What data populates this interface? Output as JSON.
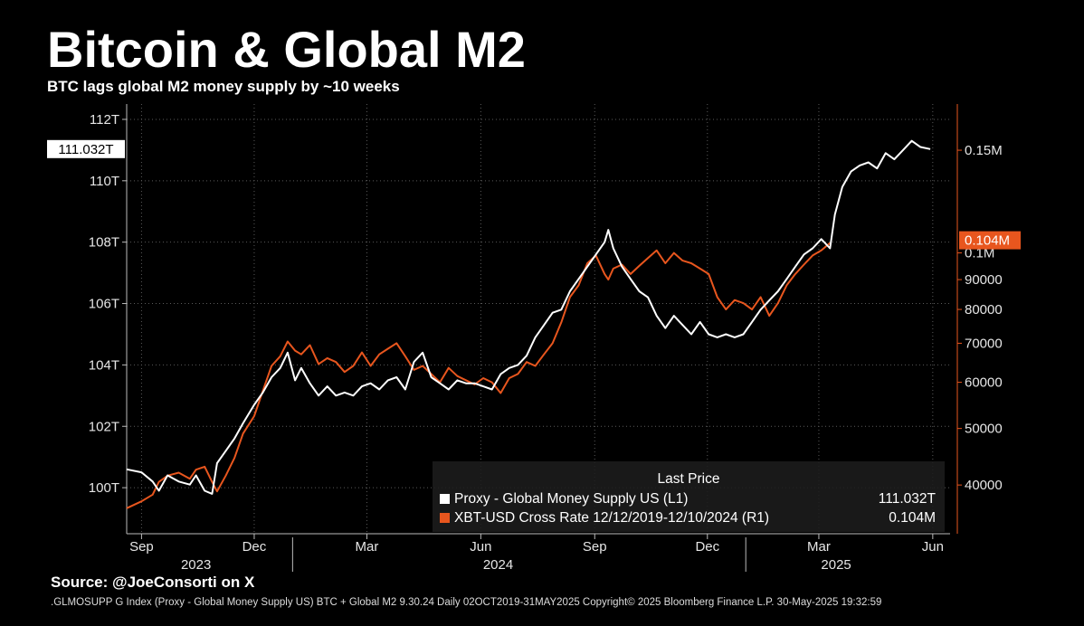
{
  "title": "Bitcoin & Global M2",
  "subtitle": "BTC lags global M2 money supply by ~10 weeks",
  "source": "Source: @JoeConsorti on X",
  "footer": ".GLMOSUPP G Index (Proxy - Global Money Supply US) BTC + Global M2 9.30.24  Daily 02OCT2019-31MAY2025 Copyright© 2025 Bloomberg Finance L.P. 30-May-2025 19:32:59",
  "colors": {
    "m2": "#ffffff",
    "btc": "#e8561e",
    "background": "#000000"
  },
  "chart_data": {
    "type": "line",
    "title": "Bitcoin & Global M2",
    "subtitle": "BTC lags global M2 money supply by ~10 weeks",
    "x_range": [
      "2023-08-20",
      "2025-06-15"
    ],
    "x_ticks": [
      {
        "date": "2023-09-01",
        "label": "Sep"
      },
      {
        "date": "2023-12-01",
        "label": "Dec"
      },
      {
        "date": "2024-03-01",
        "label": "Mar"
      },
      {
        "date": "2024-06-01",
        "label": "Jun"
      },
      {
        "date": "2024-09-01",
        "label": "Sep"
      },
      {
        "date": "2024-12-01",
        "label": "Dec"
      },
      {
        "date": "2025-03-01",
        "label": "Mar"
      },
      {
        "date": "2025-06-01",
        "label": "Jun"
      }
    ],
    "year_labels": [
      {
        "date": "2023-10-15",
        "label": "2023"
      },
      {
        "date": "2024-06-15",
        "label": "2024"
      },
      {
        "date": "2025-03-15",
        "label": "2025"
      }
    ],
    "year_dividers": [
      "2024-01-01",
      "2025-01-01"
    ],
    "left_axis": {
      "ylim": [
        98.5,
        112.5
      ],
      "ticks": [
        {
          "value": 112,
          "label": "112T"
        },
        {
          "value": 110,
          "label": "110T"
        },
        {
          "value": 108,
          "label": "108T"
        },
        {
          "value": 106,
          "label": "106T"
        },
        {
          "value": 104,
          "label": "104T"
        },
        {
          "value": 102,
          "label": "102T"
        },
        {
          "value": 100,
          "label": "100T"
        }
      ]
    },
    "right_axis": {
      "scale": "log",
      "ylim": [
        33000,
        180000
      ],
      "ticks": [
        {
          "value": 150000,
          "label": "0.15M"
        },
        {
          "value": 100000,
          "label": "0.1M"
        },
        {
          "value": 90000,
          "label": "90000"
        },
        {
          "value": 80000,
          "label": "80000"
        },
        {
          "value": 70000,
          "label": "70000"
        },
        {
          "value": 60000,
          "label": "60000"
        },
        {
          "value": 50000,
          "label": "50000"
        },
        {
          "value": 40000,
          "label": "40000"
        }
      ]
    },
    "last_value_tags": {
      "left": "111.032T",
      "right": "0.104M"
    },
    "legend": {
      "title": "Last Price",
      "placement": "bottom-right",
      "entries": [
        {
          "label": "Proxy - Global Money Supply US  (L1)",
          "value": "111.032T",
          "color": "#ffffff"
        },
        {
          "label": "XBT-USD Cross Rate 12/12/2019-12/10/2024  (R1)",
          "value": "0.104M",
          "color": "#e8561e"
        }
      ]
    },
    "series": [
      {
        "name": "Proxy - Global Money Supply US",
        "axis": "left",
        "unit": "T",
        "points": [
          [
            "2023-08-20",
            100.6
          ],
          [
            "2023-09-01",
            100.5
          ],
          [
            "2023-09-10",
            100.2
          ],
          [
            "2023-09-15",
            99.9
          ],
          [
            "2023-09-22",
            100.4
          ],
          [
            "2023-10-01",
            100.2
          ],
          [
            "2023-10-10",
            100.1
          ],
          [
            "2023-10-15",
            100.4
          ],
          [
            "2023-10-22",
            99.9
          ],
          [
            "2023-10-28",
            99.8
          ],
          [
            "2023-11-01",
            100.8
          ],
          [
            "2023-11-08",
            101.2
          ],
          [
            "2023-11-15",
            101.6
          ],
          [
            "2023-11-22",
            102.1
          ],
          [
            "2023-12-01",
            102.7
          ],
          [
            "2023-12-08",
            103.1
          ],
          [
            "2023-12-15",
            103.6
          ],
          [
            "2023-12-22",
            103.9
          ],
          [
            "2023-12-28",
            104.4
          ],
          [
            "2024-01-03",
            103.5
          ],
          [
            "2024-01-08",
            103.9
          ],
          [
            "2024-01-15",
            103.4
          ],
          [
            "2024-01-22",
            103.0
          ],
          [
            "2024-01-29",
            103.3
          ],
          [
            "2024-02-05",
            103.0
          ],
          [
            "2024-02-12",
            103.1
          ],
          [
            "2024-02-19",
            103.0
          ],
          [
            "2024-02-26",
            103.3
          ],
          [
            "2024-03-04",
            103.4
          ],
          [
            "2024-03-11",
            103.2
          ],
          [
            "2024-03-18",
            103.5
          ],
          [
            "2024-03-25",
            103.6
          ],
          [
            "2024-04-01",
            103.2
          ],
          [
            "2024-04-08",
            104.1
          ],
          [
            "2024-04-15",
            104.4
          ],
          [
            "2024-04-22",
            103.6
          ],
          [
            "2024-04-29",
            103.4
          ],
          [
            "2024-05-06",
            103.2
          ],
          [
            "2024-05-13",
            103.5
          ],
          [
            "2024-05-20",
            103.4
          ],
          [
            "2024-05-27",
            103.4
          ],
          [
            "2024-06-03",
            103.3
          ],
          [
            "2024-06-10",
            103.2
          ],
          [
            "2024-06-17",
            103.7
          ],
          [
            "2024-06-24",
            103.9
          ],
          [
            "2024-07-01",
            104.0
          ],
          [
            "2024-07-08",
            104.3
          ],
          [
            "2024-07-15",
            104.9
          ],
          [
            "2024-07-22",
            105.3
          ],
          [
            "2024-07-29",
            105.7
          ],
          [
            "2024-08-05",
            105.8
          ],
          [
            "2024-08-12",
            106.4
          ],
          [
            "2024-08-19",
            106.8
          ],
          [
            "2024-08-26",
            107.2
          ],
          [
            "2024-09-02",
            107.6
          ],
          [
            "2024-09-09",
            108.0
          ],
          [
            "2024-09-12",
            108.4
          ],
          [
            "2024-09-16",
            107.8
          ],
          [
            "2024-09-23",
            107.2
          ],
          [
            "2024-09-30",
            106.8
          ],
          [
            "2024-10-07",
            106.4
          ],
          [
            "2024-10-14",
            106.2
          ],
          [
            "2024-10-21",
            105.6
          ],
          [
            "2024-10-28",
            105.2
          ],
          [
            "2024-11-04",
            105.6
          ],
          [
            "2024-11-11",
            105.3
          ],
          [
            "2024-11-18",
            105.0
          ],
          [
            "2024-11-25",
            105.4
          ],
          [
            "2024-12-02",
            105.0
          ],
          [
            "2024-12-09",
            104.9
          ],
          [
            "2024-12-16",
            105.0
          ],
          [
            "2024-12-23",
            104.9
          ],
          [
            "2024-12-30",
            105.0
          ],
          [
            "2025-01-06",
            105.4
          ],
          [
            "2025-01-13",
            105.8
          ],
          [
            "2025-01-20",
            106.1
          ],
          [
            "2025-01-27",
            106.4
          ],
          [
            "2025-02-03",
            106.8
          ],
          [
            "2025-02-10",
            107.2
          ],
          [
            "2025-02-17",
            107.6
          ],
          [
            "2025-02-24",
            107.8
          ],
          [
            "2025-03-03",
            108.1
          ],
          [
            "2025-03-10",
            107.8
          ],
          [
            "2025-03-14",
            108.9
          ],
          [
            "2025-03-20",
            109.8
          ],
          [
            "2025-03-27",
            110.3
          ],
          [
            "2025-04-03",
            110.5
          ],
          [
            "2025-04-10",
            110.6
          ],
          [
            "2025-04-17",
            110.4
          ],
          [
            "2025-04-24",
            110.9
          ],
          [
            "2025-05-01",
            110.7
          ],
          [
            "2025-05-08",
            111.0
          ],
          [
            "2025-05-15",
            111.3
          ],
          [
            "2025-05-22",
            111.1
          ],
          [
            "2025-05-30",
            111.032
          ]
        ]
      },
      {
        "name": "XBT-USD Cross Rate 12/12/2019-12/10/2024",
        "axis": "right",
        "unit": "USD",
        "points": [
          [
            "2023-08-20",
            36500
          ],
          [
            "2023-09-01",
            37500
          ],
          [
            "2023-09-10",
            38500
          ],
          [
            "2023-09-15",
            40500
          ],
          [
            "2023-09-22",
            41500
          ],
          [
            "2023-10-01",
            42000
          ],
          [
            "2023-10-10",
            41000
          ],
          [
            "2023-10-15",
            42500
          ],
          [
            "2023-10-22",
            43000
          ],
          [
            "2023-10-28",
            40500
          ],
          [
            "2023-11-01",
            39000
          ],
          [
            "2023-11-08",
            41500
          ],
          [
            "2023-11-15",
            44500
          ],
          [
            "2023-11-22",
            49000
          ],
          [
            "2023-12-01",
            52500
          ],
          [
            "2023-12-08",
            58000
          ],
          [
            "2023-12-15",
            64000
          ],
          [
            "2023-12-22",
            66500
          ],
          [
            "2023-12-28",
            70500
          ],
          [
            "2024-01-03",
            68000
          ],
          [
            "2024-01-08",
            67000
          ],
          [
            "2024-01-15",
            69500
          ],
          [
            "2024-01-22",
            64500
          ],
          [
            "2024-01-29",
            66000
          ],
          [
            "2024-02-05",
            65000
          ],
          [
            "2024-02-12",
            62500
          ],
          [
            "2024-02-19",
            64000
          ],
          [
            "2024-02-26",
            67500
          ],
          [
            "2024-03-04",
            64000
          ],
          [
            "2024-03-11",
            67000
          ],
          [
            "2024-03-18",
            68500
          ],
          [
            "2024-03-25",
            70000
          ],
          [
            "2024-04-01",
            66500
          ],
          [
            "2024-04-08",
            63000
          ],
          [
            "2024-04-15",
            64000
          ],
          [
            "2024-04-22",
            62000
          ],
          [
            "2024-04-29",
            60000
          ],
          [
            "2024-05-06",
            63500
          ],
          [
            "2024-05-13",
            61500
          ],
          [
            "2024-05-20",
            60500
          ],
          [
            "2024-05-27",
            59500
          ],
          [
            "2024-06-03",
            61000
          ],
          [
            "2024-06-10",
            60000
          ],
          [
            "2024-06-17",
            57500
          ],
          [
            "2024-06-24",
            61000
          ],
          [
            "2024-07-01",
            62000
          ],
          [
            "2024-07-08",
            65000
          ],
          [
            "2024-07-15",
            64000
          ],
          [
            "2024-07-22",
            67000
          ],
          [
            "2024-07-29",
            70000
          ],
          [
            "2024-08-05",
            76000
          ],
          [
            "2024-08-12",
            84000
          ],
          [
            "2024-08-19",
            88000
          ],
          [
            "2024-08-26",
            96000
          ],
          [
            "2024-09-02",
            99000
          ],
          [
            "2024-09-09",
            92000
          ],
          [
            "2024-09-12",
            90000
          ],
          [
            "2024-09-16",
            94000
          ],
          [
            "2024-09-23",
            95500
          ],
          [
            "2024-09-30",
            92000
          ],
          [
            "2024-10-07",
            95000
          ],
          [
            "2024-10-14",
            98000
          ],
          [
            "2024-10-21",
            101000
          ],
          [
            "2024-10-28",
            96000
          ],
          [
            "2024-11-04",
            100000
          ],
          [
            "2024-11-11",
            97000
          ],
          [
            "2024-11-18",
            96000
          ],
          [
            "2024-11-25",
            94000
          ],
          [
            "2024-12-02",
            92000
          ],
          [
            "2024-12-09",
            84000
          ],
          [
            "2024-12-16",
            80000
          ],
          [
            "2024-12-23",
            83000
          ],
          [
            "2024-12-30",
            82000
          ],
          [
            "2025-01-06",
            80000
          ],
          [
            "2025-01-13",
            84000
          ],
          [
            "2025-01-20",
            78000
          ],
          [
            "2025-01-27",
            82000
          ],
          [
            "2025-02-03",
            88000
          ],
          [
            "2025-02-10",
            92000
          ],
          [
            "2025-02-17",
            95500
          ],
          [
            "2025-02-24",
            99000
          ],
          [
            "2025-03-03",
            101000
          ],
          [
            "2025-03-10",
            104000
          ]
        ]
      }
    ]
  }
}
